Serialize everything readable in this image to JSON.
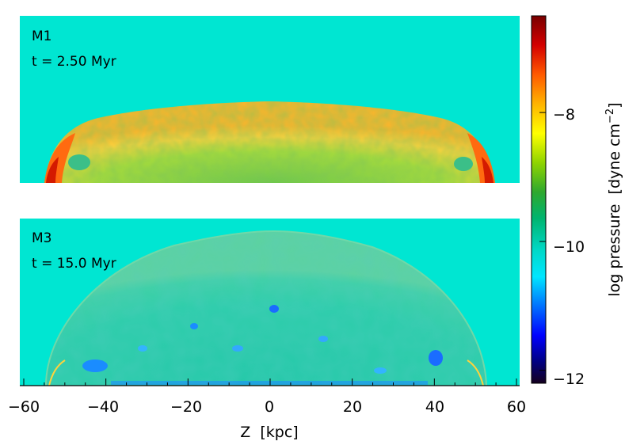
{
  "panels": [
    {
      "model": "M1",
      "time": "t = 2.50 Myr"
    },
    {
      "model": "M3",
      "time": "t = 15.0 Myr"
    }
  ],
  "x_axis": {
    "title": "Z  [kpc]",
    "range": [
      -60,
      60
    ],
    "ticks": [
      "−60",
      "−40",
      "−20",
      "0",
      "20",
      "40",
      "60"
    ]
  },
  "colorbar": {
    "title": "log pressure  [dyne cm",
    "title_exponent": "−2",
    "title_close": "]",
    "ticks": [
      "−8",
      "−10",
      "−12"
    ],
    "range": [
      -12.2,
      -6.5
    ],
    "colormap": [
      "#14001e",
      "#000084",
      "#0000ff",
      "#0080ff",
      "#00e6ff",
      "#00d9c9",
      "#00b46e",
      "#2ea82e",
      "#8fd400",
      "#ffff00",
      "#ffb400",
      "#ff5a00",
      "#d40000",
      "#780000"
    ]
  },
  "colors": {
    "background_field": "#00e6d2",
    "m1_shell": "#ffc832",
    "m1_shell_hot": "#ff7a14",
    "m1_inner": "#8fd43a",
    "m3_cocoon": "#1fd2b0",
    "m3_cocoon_edge": "#40c8a0",
    "m3_lowp": "#1a8cff"
  }
}
